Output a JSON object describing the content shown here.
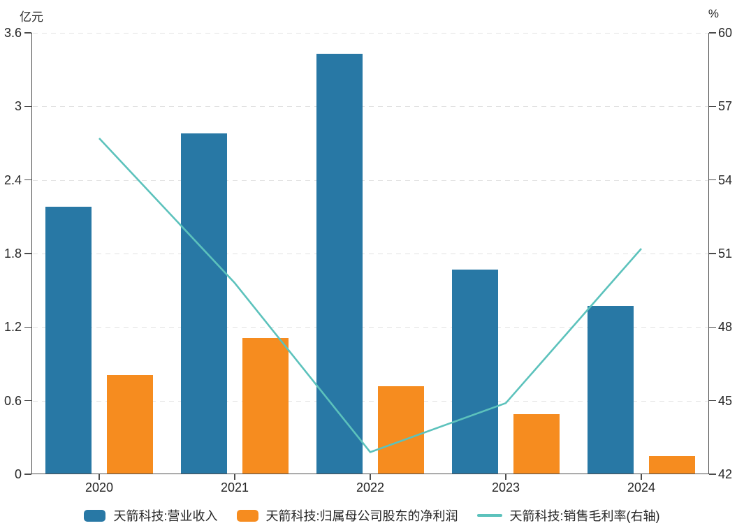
{
  "chart_data": {
    "type": "combo",
    "categories": [
      "2020",
      "2021",
      "2022",
      "2023",
      "2024"
    ],
    "series": [
      {
        "name": "天箭科技:营业收入",
        "type": "bar",
        "axis": "left",
        "color": "#2878A5",
        "values": [
          2.18,
          2.78,
          3.43,
          1.67,
          1.37
        ]
      },
      {
        "name": "天箭科技:归属母公司股东的净利润",
        "type": "bar",
        "axis": "left",
        "color": "#F68C1F",
        "values": [
          0.81,
          1.11,
          0.72,
          0.49,
          0.15
        ]
      },
      {
        "name": "天箭科技:销售毛利率(右轴)",
        "type": "line",
        "axis": "right",
        "color": "#5CC2BC",
        "values": [
          55.7,
          49.8,
          42.9,
          44.9,
          51.2
        ]
      }
    ],
    "left_axis": {
      "unit": "亿元",
      "min": 0,
      "max": 3.6,
      "ticks": [
        0,
        0.6,
        1.2,
        1.8,
        2.4,
        3,
        3.6
      ],
      "tick_labels": [
        "0",
        "0.6",
        "1.2",
        "1.8",
        "2.4",
        "3",
        "3.6"
      ]
    },
    "right_axis": {
      "unit": "%",
      "min": 42,
      "max": 60,
      "ticks": [
        42,
        45,
        48,
        51,
        54,
        57,
        60
      ],
      "tick_labels": [
        "42",
        "45",
        "48",
        "51",
        "54",
        "57",
        "60"
      ]
    },
    "grid": true,
    "legend_position": "bottom",
    "styles": {
      "grid_color": "#e2e2e2",
      "axis_color": "#4c4c4c",
      "text_color": "#262626",
      "background": "#ffffff"
    }
  }
}
